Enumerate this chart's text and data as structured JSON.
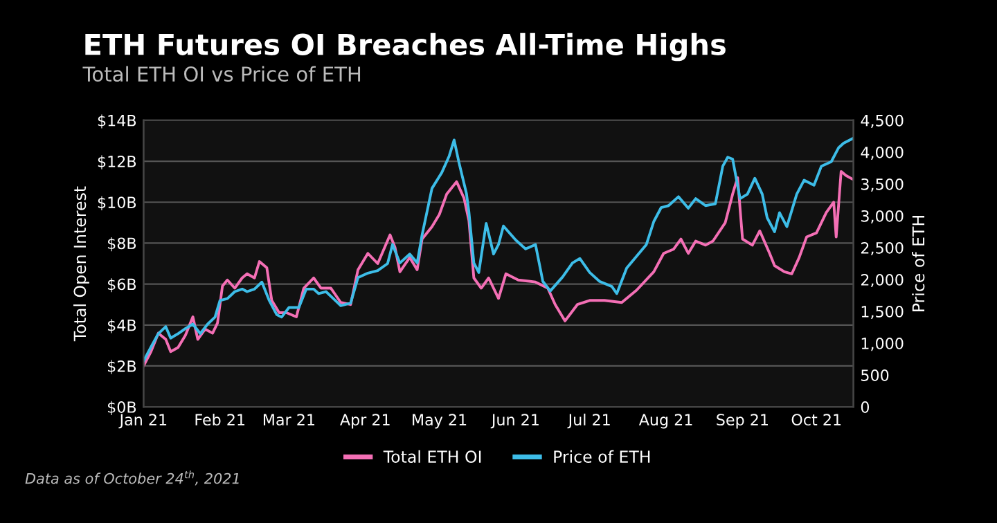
{
  "chart_data": {
    "type": "line",
    "title": "ETH Futures OI Breaches All-Time Highs",
    "subtitle": "Total ETH OI vs Price of ETH",
    "ylabel": "Total Open Interest",
    "y2label": "Price of ETH",
    "annotations": [
      "Data as of October 24$^{th}$, 2021"
    ],
    "xlim": [
      "2021-01-01",
      "2021-10-16"
    ],
    "xticks": [
      {
        "value": "2021-01-01",
        "label": "Jan 21"
      },
      {
        "value": "2021-02-01",
        "label": "Feb 21"
      },
      {
        "value": "2021-03-01",
        "label": "Mar 21"
      },
      {
        "value": "2021-04-01",
        "label": "Apr 21"
      },
      {
        "value": "2021-05-01",
        "label": "May 21"
      },
      {
        "value": "2021-06-01",
        "label": "Jun 21"
      },
      {
        "value": "2021-07-01",
        "label": "Jul 21"
      },
      {
        "value": "2021-08-01",
        "label": "Aug 21"
      },
      {
        "value": "2021-09-01",
        "label": "Sep 21"
      },
      {
        "value": "2021-10-01",
        "label": "Oct 21"
      }
    ],
    "ylim": [
      0,
      14
    ],
    "yticks": [
      {
        "value": 0,
        "label": "$0B"
      },
      {
        "value": 2,
        "label": "$2B"
      },
      {
        "value": 4,
        "label": "$4B"
      },
      {
        "value": 6,
        "label": "$6B"
      },
      {
        "value": 8,
        "label": "$8B"
      },
      {
        "value": 10,
        "label": "$10B"
      },
      {
        "value": 12,
        "label": "$12B"
      },
      {
        "value": 14,
        "label": "$14B"
      }
    ],
    "y2lim": [
      0,
      4500
    ],
    "y2ticks": [
      {
        "value": 0,
        "label": "0"
      },
      {
        "value": 500,
        "label": "500"
      },
      {
        "value": 1000,
        "label": "1,000"
      },
      {
        "value": 1500,
        "label": "1,500"
      },
      {
        "value": 2000,
        "label": "2,000"
      },
      {
        "value": 2500,
        "label": "2,500"
      },
      {
        "value": 3000,
        "label": "3,000"
      },
      {
        "value": 3500,
        "label": "3,500"
      },
      {
        "value": 4000,
        "label": "4,000"
      },
      {
        "value": 4500,
        "label": "4,500"
      }
    ],
    "grid": "y",
    "legend": "bottom",
    "series": [
      {
        "name": "Total ETH OI",
        "color": "#f46fb5",
        "x": [
          "2021-01-01",
          "2021-01-04",
          "2021-01-07",
          "2021-01-10",
          "2021-01-12",
          "2021-01-15",
          "2021-01-18",
          "2021-01-21",
          "2021-01-23",
          "2021-01-26",
          "2021-01-29",
          "2021-01-31",
          "2021-02-02",
          "2021-02-04",
          "2021-02-07",
          "2021-02-10",
          "2021-02-12",
          "2021-02-15",
          "2021-02-17",
          "2021-02-20",
          "2021-02-22",
          "2021-02-25",
          "2021-02-28",
          "2021-03-04",
          "2021-03-07",
          "2021-03-11",
          "2021-03-14",
          "2021-03-18",
          "2021-03-22",
          "2021-03-26",
          "2021-03-29",
          "2021-04-02",
          "2021-04-06",
          "2021-04-11",
          "2021-04-13",
          "2021-04-15",
          "2021-04-19",
          "2021-04-22",
          "2021-04-24",
          "2021-04-28",
          "2021-05-01",
          "2021-05-04",
          "2021-05-08",
          "2021-05-11",
          "2021-05-13",
          "2021-05-15",
          "2021-05-18",
          "2021-05-21",
          "2021-05-25",
          "2021-05-28",
          "2021-06-02",
          "2021-06-09",
          "2021-06-14",
          "2021-06-17",
          "2021-06-21",
          "2021-06-26",
          "2021-07-01",
          "2021-07-07",
          "2021-07-14",
          "2021-07-20",
          "2021-07-27",
          "2021-07-31",
          "2021-08-04",
          "2021-08-07",
          "2021-08-10",
          "2021-08-13",
          "2021-08-17",
          "2021-08-20",
          "2021-08-25",
          "2021-08-28",
          "2021-08-30",
          "2021-09-01",
          "2021-09-05",
          "2021-09-08",
          "2021-09-12",
          "2021-09-14",
          "2021-09-18",
          "2021-09-21",
          "2021-09-24",
          "2021-09-27",
          "2021-10-01",
          "2021-10-05",
          "2021-10-08",
          "2021-10-09",
          "2021-10-11",
          "2021-10-13",
          "2021-10-16"
        ],
        "values": [
          2.0,
          2.7,
          3.6,
          3.3,
          2.7,
          2.9,
          3.5,
          4.4,
          3.3,
          3.8,
          3.6,
          4.1,
          5.9,
          6.2,
          5.8,
          6.3,
          6.5,
          6.3,
          7.1,
          6.8,
          5.2,
          4.6,
          4.6,
          4.4,
          5.8,
          6.3,
          5.8,
          5.8,
          5.1,
          5.0,
          6.7,
          7.5,
          7.0,
          8.4,
          7.8,
          6.6,
          7.3,
          6.7,
          8.2,
          8.8,
          9.4,
          10.4,
          11.0,
          10.2,
          9.1,
          6.3,
          5.8,
          6.3,
          5.3,
          6.5,
          6.2,
          6.1,
          5.8,
          5.0,
          4.2,
          5.0,
          5.2,
          5.2,
          5.1,
          5.7,
          6.6,
          7.5,
          7.7,
          8.2,
          7.5,
          8.1,
          7.9,
          8.1,
          9.0,
          10.4,
          11.2,
          8.2,
          7.9,
          8.6,
          7.5,
          6.9,
          6.6,
          6.5,
          7.3,
          8.3,
          8.5,
          9.5,
          10.0,
          8.3,
          11.5,
          11.3,
          11.1
        ]
      },
      {
        "name": "Price of ETH",
        "color": "#3dbde8",
        "axis": "y2",
        "x": [
          "2021-01-01",
          "2021-01-04",
          "2021-01-07",
          "2021-01-10",
          "2021-01-12",
          "2021-01-15",
          "2021-01-18",
          "2021-01-21",
          "2021-01-24",
          "2021-01-27",
          "2021-01-30",
          "2021-02-01",
          "2021-02-04",
          "2021-02-07",
          "2021-02-10",
          "2021-02-12",
          "2021-02-15",
          "2021-02-18",
          "2021-02-21",
          "2021-02-24",
          "2021-02-26",
          "2021-03-01",
          "2021-03-05",
          "2021-03-08",
          "2021-03-11",
          "2021-03-13",
          "2021-03-16",
          "2021-03-19",
          "2021-03-22",
          "2021-03-26",
          "2021-03-29",
          "2021-04-02",
          "2021-04-06",
          "2021-04-10",
          "2021-04-12",
          "2021-04-15",
          "2021-04-19",
          "2021-04-22",
          "2021-04-24",
          "2021-04-28",
          "2021-05-02",
          "2021-05-05",
          "2021-05-07",
          "2021-05-09",
          "2021-05-12",
          "2021-05-13",
          "2021-05-15",
          "2021-05-17",
          "2021-05-20",
          "2021-05-23",
          "2021-05-25",
          "2021-05-27",
          "2021-06-01",
          "2021-06-05",
          "2021-06-09",
          "2021-06-12",
          "2021-06-15",
          "2021-06-20",
          "2021-06-24",
          "2021-06-27",
          "2021-07-01",
          "2021-07-05",
          "2021-07-10",
          "2021-07-12",
          "2021-07-16",
          "2021-07-24",
          "2021-07-27",
          "2021-07-30",
          "2021-08-02",
          "2021-08-06",
          "2021-08-10",
          "2021-08-13",
          "2021-08-17",
          "2021-08-21",
          "2021-08-24",
          "2021-08-26",
          "2021-08-28",
          "2021-08-31",
          "2021-09-03",
          "2021-09-06",
          "2021-09-09",
          "2021-09-11",
          "2021-09-14",
          "2021-09-16",
          "2021-09-19",
          "2021-09-23",
          "2021-09-26",
          "2021-09-30",
          "2021-10-03",
          "2021-10-07",
          "2021-10-10",
          "2021-10-12",
          "2021-10-16"
        ],
        "values": [
          720,
          940,
          1150,
          1260,
          1080,
          1150,
          1230,
          1300,
          1150,
          1300,
          1410,
          1670,
          1700,
          1810,
          1850,
          1810,
          1850,
          1960,
          1670,
          1450,
          1410,
          1560,
          1560,
          1850,
          1850,
          1780,
          1810,
          1700,
          1590,
          1630,
          2030,
          2100,
          2140,
          2250,
          2550,
          2260,
          2400,
          2260,
          2700,
          3430,
          3680,
          3940,
          4190,
          3830,
          3350,
          3060,
          2260,
          2110,
          2880,
          2400,
          2550,
          2840,
          2620,
          2480,
          2550,
          1970,
          1820,
          2040,
          2260,
          2330,
          2110,
          1970,
          1890,
          1780,
          2180,
          2550,
          2910,
          3130,
          3160,
          3300,
          3120,
          3270,
          3160,
          3190,
          3780,
          3920,
          3890,
          3270,
          3340,
          3590,
          3340,
          2970,
          2750,
          3050,
          2830,
          3340,
          3560,
          3480,
          3780,
          3850,
          4070,
          4140,
          4220
        ]
      }
    ]
  }
}
